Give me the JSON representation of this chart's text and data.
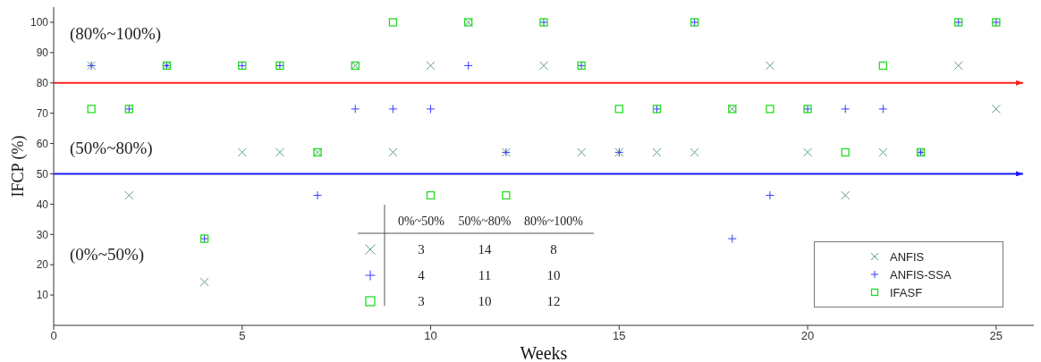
{
  "chart_data": {
    "type": "scatter",
    "xlabel": "Weeks",
    "ylabel": "IFCP (%)",
    "x": [
      1,
      2,
      3,
      4,
      5,
      6,
      7,
      8,
      9,
      10,
      11,
      12,
      13,
      14,
      15,
      16,
      17,
      18,
      19,
      20,
      21,
      22,
      23,
      24,
      25
    ],
    "series": [
      {
        "name": "ANFIS",
        "color": "#5f9f80",
        "marker": "x",
        "values": [
          85.7,
          42.9,
          85.7,
          14.3,
          57.1,
          57.1,
          57.1,
          85.7,
          57.1,
          85.7,
          100,
          57.1,
          85.7,
          57.1,
          57.1,
          57.1,
          57.1,
          71.4,
          85.7,
          57.1,
          42.9,
          57.1,
          57.1,
          85.7,
          71.4
        ]
      },
      {
        "name": "ANFIS-SSA",
        "color": "#3a3aff",
        "marker": "cross",
        "values": [
          85.7,
          71.4,
          85.7,
          28.6,
          85.7,
          85.7,
          42.9,
          71.4,
          71.4,
          71.4,
          85.7,
          57.1,
          100,
          85.7,
          57.1,
          71.4,
          100,
          28.6,
          42.9,
          71.4,
          71.4,
          71.4,
          57.1,
          100,
          100
        ]
      },
      {
        "name": "IFASF",
        "color": "#22dd22",
        "marker": "square",
        "values": [
          71.4,
          71.4,
          85.7,
          28.6,
          85.7,
          85.7,
          57.1,
          85.7,
          100,
          42.9,
          100,
          42.9,
          100,
          85.7,
          71.4,
          71.4,
          100,
          71.4,
          71.4,
          71.4,
          57.1,
          85.7,
          57.1,
          100,
          100
        ]
      }
    ],
    "xlim": [
      0,
      26
    ],
    "xticks": [
      0,
      5,
      10,
      15,
      20,
      25
    ],
    "ylim": [
      0,
      105
    ],
    "yticks": [
      10,
      20,
      30,
      40,
      50,
      60,
      70,
      80,
      90,
      100
    ],
    "ref_lines": [
      {
        "axis": "y",
        "value": 80,
        "color": "#ff2020"
      },
      {
        "axis": "y",
        "value": 50,
        "color": "#1a1aff"
      }
    ],
    "annotations": [
      "(80%~100%)",
      "(50%~80%)",
      "(0%~50%)",
      "0%~50%",
      "50%~80%",
      "80%~100%",
      "3",
      "14",
      "8",
      "4",
      "11",
      "10",
      "3",
      "10",
      "12"
    ],
    "legend": "bottom right",
    "grid": false
  }
}
